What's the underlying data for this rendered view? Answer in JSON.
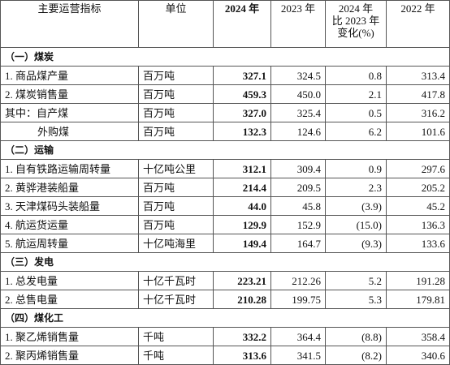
{
  "header": [
    "主要运营指标",
    "单位",
    "2024 年",
    "2023 年",
    [
      "2024 年",
      "比 2023 年",
      "变化(%)"
    ],
    "2022 年"
  ],
  "sections": [
    {
      "title": "（一）煤炭",
      "rows": [
        [
          "1. 商品煤产量",
          "百万吨",
          "327.1",
          "324.5",
          "0.8",
          "313.4"
        ],
        [
          "2. 煤炭销售量",
          "百万吨",
          "459.3",
          "450.0",
          "2.1",
          "417.8"
        ],
        [
          "其中：自产煤",
          "百万吨",
          "327.0",
          "325.4",
          "0.5",
          "316.2"
        ],
        [
          "外购煤",
          "百万吨",
          "132.3",
          "124.6",
          "6.2",
          "101.6"
        ]
      ]
    },
    {
      "title": "（二）运输",
      "rows": [
        [
          "1. 自有铁路运输周转量",
          "十亿吨公里",
          "312.1",
          "309.4",
          "0.9",
          "297.6"
        ],
        [
          "2. 黄骅港装船量",
          "百万吨",
          "214.4",
          "209.5",
          "2.3",
          "205.2"
        ],
        [
          "3. 天津煤码头装船量",
          "百万吨",
          "44.0",
          "45.8",
          "(3.9)",
          "45.2"
        ],
        [
          "4. 航运货运量",
          "百万吨",
          "129.9",
          "152.9",
          "(15.0)",
          "136.3"
        ],
        [
          "5. 航运周转量",
          "十亿吨海里",
          "149.4",
          "164.7",
          "(9.3)",
          "133.6"
        ]
      ]
    },
    {
      "title": "（三）发电",
      "rows": [
        [
          "1. 总发电量",
          "十亿千瓦时",
          "223.21",
          "212.26",
          "5.2",
          "191.28"
        ],
        [
          "2. 总售电量",
          "十亿千瓦时",
          "210.28",
          "199.75",
          "5.3",
          "179.81"
        ]
      ]
    },
    {
      "title": "（四）煤化工",
      "rows": [
        [
          "1. 聚乙烯销售量",
          "千吨",
          "332.2",
          "364.4",
          "(8.8)",
          "358.4"
        ],
        [
          "2. 聚丙烯销售量",
          "千吨",
          "313.6",
          "341.5",
          "(8.2)",
          "340.6"
        ]
      ]
    }
  ]
}
